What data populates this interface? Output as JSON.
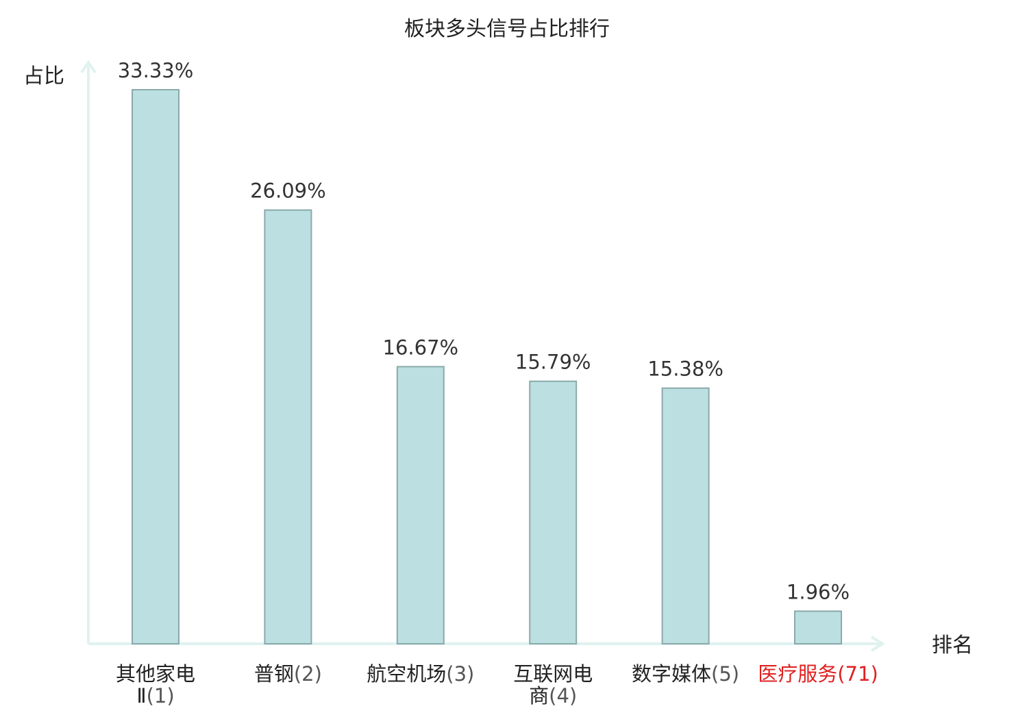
{
  "chart_data": {
    "type": "bar",
    "title": "板块多头信号占比排行",
    "ylabel": "占比",
    "xlabel": "排名",
    "categories": [
      {
        "name": "其他家电Ⅱ",
        "rank": "(1)",
        "lines": [
          [
            "其他家电",
            ""
          ],
          [
            "Ⅱ",
            "(1)"
          ]
        ],
        "highlight": false
      },
      {
        "name": "普钢",
        "rank": "(2)",
        "lines": [
          [
            "普钢",
            "(2)"
          ]
        ],
        "highlight": false
      },
      {
        "name": "航空机场",
        "rank": "(3)",
        "lines": [
          [
            "航空机场",
            "(3)"
          ]
        ],
        "highlight": false
      },
      {
        "name": "互联网电商",
        "rank": "(4)",
        "lines": [
          [
            "互联网电",
            ""
          ],
          [
            "商",
            "(4)"
          ]
        ],
        "highlight": false
      },
      {
        "name": "数字媒体",
        "rank": "(5)",
        "lines": [
          [
            "数字媒体",
            "(5)"
          ]
        ],
        "highlight": false
      },
      {
        "name": "医疗服务",
        "rank": "(71)",
        "lines": [
          [
            "医疗服务",
            "(71)"
          ]
        ],
        "highlight": true
      }
    ],
    "values": [
      33.33,
      26.09,
      16.67,
      15.79,
      15.38,
      1.96
    ],
    "value_labels": [
      "33.33%",
      "26.09%",
      "16.67%",
      "15.79%",
      "15.38%",
      "1.96%"
    ],
    "ylim": [
      0,
      33.33
    ],
    "grid": false,
    "legend": "none",
    "colors": {
      "bar_fill": "#bce0e2",
      "bar_stroke": "#8aa9ab",
      "axis": "#dff2ef",
      "text": "#222222",
      "value_text": "#333333",
      "rank_text": "#555555",
      "highlight": "#e02020"
    }
  }
}
